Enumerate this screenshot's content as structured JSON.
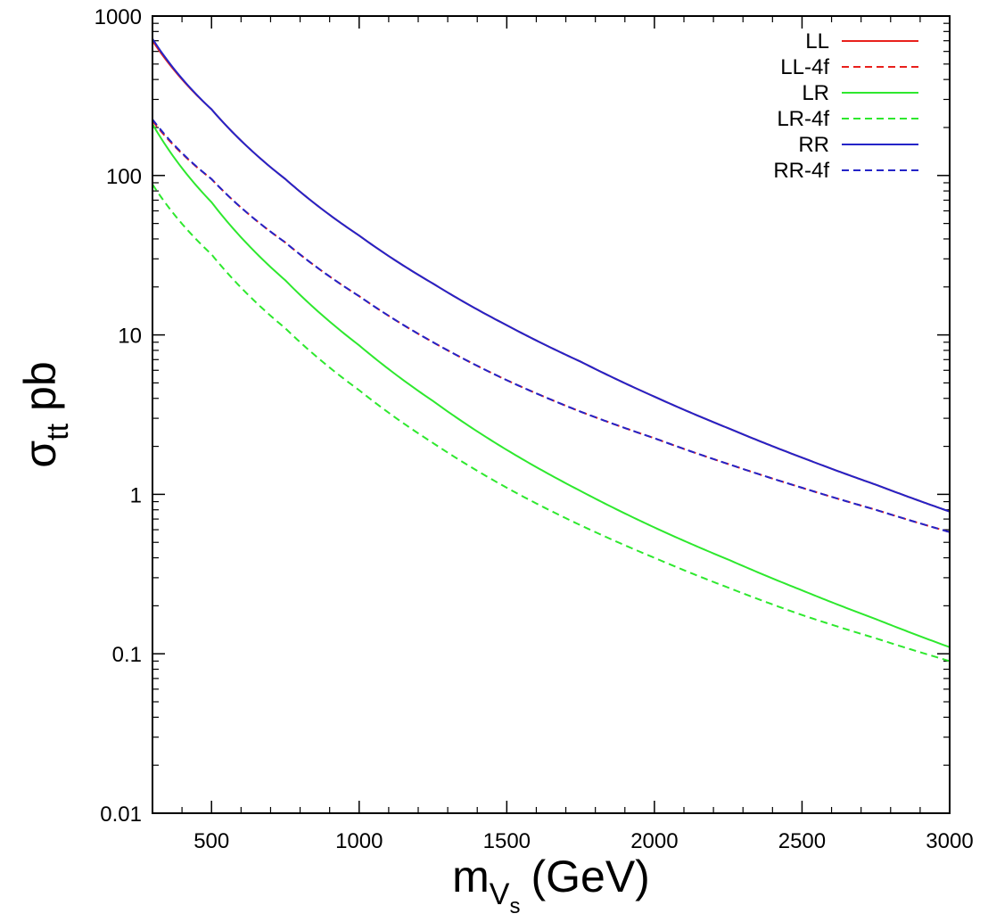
{
  "chart_data": {
    "type": "line",
    "title": "",
    "xlabel": {
      "main": "m",
      "sub": "V",
      "subsub": "s",
      "unit": "(GeV)"
    },
    "ylabel": {
      "main": "σ",
      "sub": "tt",
      "unit": "pb"
    },
    "xlim": [
      300,
      3000
    ],
    "ylim": [
      0.01,
      1000
    ],
    "yscale": "log",
    "grid": false,
    "legend_position": "top-right",
    "x_ticks": [
      500,
      1000,
      1500,
      2000,
      2500,
      3000
    ],
    "x_tick_labels": [
      "500",
      "1000",
      "1500",
      "2000",
      "2500",
      "3000"
    ],
    "y_ticks": [
      0.01,
      0.1,
      1,
      10,
      100,
      1000
    ],
    "y_tick_labels": [
      "0.01",
      "0.1",
      "1",
      "10",
      "100",
      "1000"
    ],
    "x": [
      300,
      500,
      750,
      1000,
      1250,
      1500,
      1750,
      2000,
      2250,
      2500,
      2750,
      3000
    ],
    "series": [
      {
        "name": "LL",
        "color": "#e8201c",
        "dash": "solid",
        "values": [
          700,
          260,
          95,
          42,
          21,
          11.5,
          6.8,
          4.1,
          2.6,
          1.7,
          1.15,
          0.78
        ]
      },
      {
        "name": "LL-4f",
        "color": "#e8201c",
        "dash": "dashed",
        "values": [
          220,
          95,
          38,
          17.5,
          9,
          5.2,
          3.3,
          2.25,
          1.55,
          1.1,
          0.8,
          0.58
        ]
      },
      {
        "name": "LR",
        "color": "#2ee82e",
        "dash": "solid",
        "values": [
          210,
          68,
          22,
          8.6,
          3.85,
          1.9,
          1.05,
          0.62,
          0.39,
          0.25,
          0.165,
          0.11
        ]
      },
      {
        "name": "LR-4f",
        "color": "#2ee82e",
        "dash": "dashed",
        "values": [
          88,
          32,
          11,
          4.5,
          2.1,
          1.1,
          0.64,
          0.4,
          0.26,
          0.175,
          0.125,
          0.09
        ]
      },
      {
        "name": "RR",
        "color": "#2424c8",
        "dash": "solid",
        "values": [
          720,
          260,
          95,
          42,
          21,
          11.5,
          6.8,
          4.1,
          2.6,
          1.7,
          1.15,
          0.78
        ]
      },
      {
        "name": "RR-4f",
        "color": "#2424c8",
        "dash": "dashed",
        "values": [
          225,
          95,
          38,
          17.5,
          9,
          5.2,
          3.3,
          2.25,
          1.55,
          1.1,
          0.8,
          0.58
        ]
      }
    ]
  }
}
